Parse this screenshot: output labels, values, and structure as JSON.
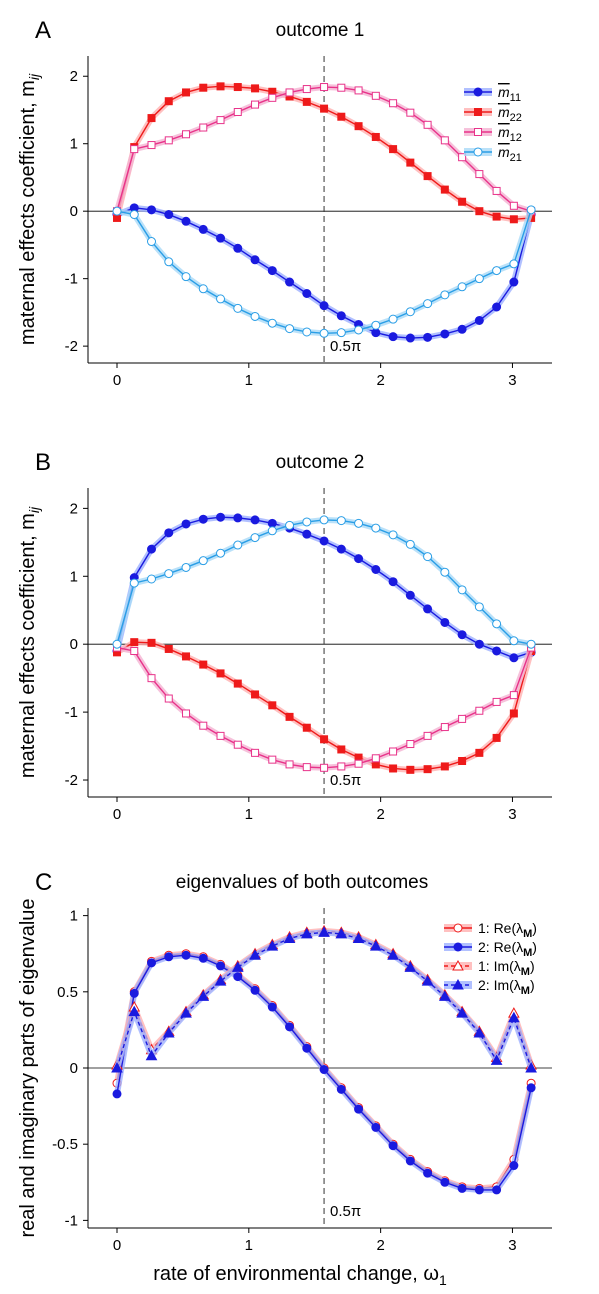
{
  "figure": {
    "xlabel_main": "rate of environmental change, ω",
    "xlabel_sub": "1",
    "vline_x": 1.5708,
    "vline_label": "0.5π",
    "colors": {
      "blue": "#1a1adf",
      "red": "#ee1a1a",
      "pink": "#e8338a",
      "cyan": "#2a9ee6",
      "blue_band": "#9db0ff",
      "red_band": "#ffb0b0",
      "pink_band": "#f4b3d2",
      "cyan_band": "#a9daf7"
    }
  },
  "chart_data": [
    {
      "type": "line",
      "panel_label": "A",
      "title": "outcome 1",
      "ylabel_main": "maternal effects coefficient, m",
      "ylabel_sub": "ij",
      "xlim": [
        -0.22,
        3.3
      ],
      "ylim": [
        -2.25,
        2.3
      ],
      "xticks": [
        "0",
        "1",
        "2",
        "3"
      ],
      "yticks": [
        "-2",
        "-1",
        "0",
        "1",
        "2"
      ],
      "x": [
        0,
        0.1309,
        0.2618,
        0.3927,
        0.5236,
        0.6545,
        0.7854,
        0.9163,
        1.0472,
        1.1781,
        1.309,
        1.4399,
        1.5708,
        1.7017,
        1.8326,
        1.9635,
        2.0944,
        2.2253,
        2.3562,
        2.4871,
        2.618,
        2.7489,
        2.8798,
        3.0107,
        3.1416
      ],
      "series": [
        {
          "name": "m̅11",
          "name_base": "m",
          "name_sub": "11",
          "color": "#1a1adf",
          "band": "#9db0ff",
          "marker": "circle",
          "filled": true,
          "dashed": false,
          "values": [
            -0.05,
            0.05,
            0.02,
            -0.05,
            -0.15,
            -0.27,
            -0.4,
            -0.55,
            -0.72,
            -0.88,
            -1.05,
            -1.22,
            -1.4,
            -1.55,
            -1.68,
            -1.8,
            -1.86,
            -1.88,
            -1.87,
            -1.82,
            -1.75,
            -1.62,
            -1.42,
            -1.05,
            -0.05
          ]
        },
        {
          "name": "m̅22",
          "name_base": "m",
          "name_sub": "22",
          "color": "#ee1a1a",
          "band": "#ffb0b0",
          "marker": "square",
          "filled": true,
          "dashed": false,
          "values": [
            -0.1,
            0.95,
            1.38,
            1.63,
            1.76,
            1.83,
            1.85,
            1.84,
            1.82,
            1.77,
            1.7,
            1.62,
            1.52,
            1.4,
            1.26,
            1.1,
            0.92,
            0.72,
            0.52,
            0.32,
            0.14,
            0.0,
            -0.08,
            -0.12,
            -0.1
          ]
        },
        {
          "name": "m̅12",
          "name_base": "m",
          "name_sub": "12",
          "color": "#e8338a",
          "band": "#f4b3d2",
          "marker": "square",
          "filled": false,
          "dashed": false,
          "values": [
            0.0,
            0.92,
            0.98,
            1.05,
            1.14,
            1.24,
            1.35,
            1.47,
            1.58,
            1.68,
            1.76,
            1.81,
            1.84,
            1.83,
            1.79,
            1.71,
            1.6,
            1.46,
            1.28,
            1.05,
            0.8,
            0.55,
            0.3,
            0.08,
            0.0
          ]
        },
        {
          "name": "m̅21",
          "name_base": "m",
          "name_sub": "21",
          "color": "#2a9ee6",
          "band": "#a9daf7",
          "marker": "circle",
          "filled": false,
          "dashed": false,
          "values": [
            0.0,
            -0.05,
            -0.45,
            -0.75,
            -0.97,
            -1.15,
            -1.3,
            -1.44,
            -1.56,
            -1.66,
            -1.74,
            -1.79,
            -1.81,
            -1.8,
            -1.76,
            -1.69,
            -1.6,
            -1.49,
            -1.37,
            -1.24,
            -1.12,
            -1.0,
            -0.88,
            -0.78,
            0.02
          ]
        }
      ]
    },
    {
      "type": "line",
      "panel_label": "B",
      "title": "outcome 2",
      "ylabel_main": "maternal effects coefficient, m",
      "ylabel_sub": "ij",
      "xlim": [
        -0.22,
        3.3
      ],
      "ylim": [
        -2.25,
        2.3
      ],
      "xticks": [
        "0",
        "1",
        "2",
        "3"
      ],
      "yticks": [
        "-2",
        "-1",
        "0",
        "1",
        "2"
      ],
      "x": [
        0,
        0.1309,
        0.2618,
        0.3927,
        0.5236,
        0.6545,
        0.7854,
        0.9163,
        1.0472,
        1.1781,
        1.309,
        1.4399,
        1.5708,
        1.7017,
        1.8326,
        1.9635,
        2.0944,
        2.2253,
        2.3562,
        2.4871,
        2.618,
        2.7489,
        2.8798,
        3.0107,
        3.1416
      ],
      "series": [
        {
          "name": "blue",
          "color": "#1a1adf",
          "band": "#9db0ff",
          "marker": "circle",
          "filled": true,
          "dashed": false,
          "values": [
            -0.1,
            0.98,
            1.4,
            1.64,
            1.77,
            1.84,
            1.87,
            1.86,
            1.83,
            1.78,
            1.71,
            1.62,
            1.52,
            1.4,
            1.26,
            1.1,
            0.92,
            0.72,
            0.52,
            0.32,
            0.14,
            0.0,
            -0.1,
            -0.2,
            -0.12
          ]
        },
        {
          "name": "red",
          "color": "#ee1a1a",
          "band": "#ffb0b0",
          "marker": "square",
          "filled": true,
          "dashed": false,
          "values": [
            -0.12,
            0.03,
            0.02,
            -0.07,
            -0.18,
            -0.3,
            -0.43,
            -0.58,
            -0.74,
            -0.9,
            -1.07,
            -1.23,
            -1.4,
            -1.55,
            -1.67,
            -1.77,
            -1.83,
            -1.85,
            -1.84,
            -1.8,
            -1.72,
            -1.6,
            -1.38,
            -1.02,
            -0.1
          ]
        },
        {
          "name": "pink",
          "color": "#e8338a",
          "band": "#f4b3d2",
          "marker": "square",
          "filled": false,
          "dashed": false,
          "values": [
            -0.05,
            -0.1,
            -0.5,
            -0.8,
            -1.02,
            -1.2,
            -1.35,
            -1.48,
            -1.6,
            -1.7,
            -1.77,
            -1.81,
            -1.82,
            -1.8,
            -1.76,
            -1.68,
            -1.58,
            -1.47,
            -1.35,
            -1.22,
            -1.1,
            -0.98,
            -0.85,
            -0.75,
            -0.05
          ]
        },
        {
          "name": "cyan",
          "color": "#2a9ee6",
          "band": "#a9daf7",
          "marker": "circle",
          "filled": false,
          "dashed": false,
          "values": [
            0.0,
            0.9,
            0.96,
            1.04,
            1.13,
            1.23,
            1.34,
            1.46,
            1.57,
            1.67,
            1.75,
            1.8,
            1.83,
            1.82,
            1.78,
            1.71,
            1.61,
            1.47,
            1.29,
            1.06,
            0.8,
            0.55,
            0.3,
            0.05,
            0.0
          ]
        }
      ]
    },
    {
      "type": "line",
      "panel_label": "C",
      "title": "eigenvalues of both outcomes",
      "ylabel_main": "real and imaginary parts of eigenvalue",
      "ylabel_sub": "",
      "xlim": [
        -0.22,
        3.3
      ],
      "ylim": [
        -1.05,
        1.05
      ],
      "xticks": [
        "0",
        "1",
        "2",
        "3"
      ],
      "yticks": [
        "-1",
        "-0.5",
        "0",
        "0.5",
        "1"
      ],
      "x": [
        0,
        0.1309,
        0.2618,
        0.3927,
        0.5236,
        0.6545,
        0.7854,
        0.9163,
        1.0472,
        1.1781,
        1.309,
        1.4399,
        1.5708,
        1.7017,
        1.8326,
        1.9635,
        2.0944,
        2.2253,
        2.3562,
        2.4871,
        2.618,
        2.7489,
        2.8798,
        3.0107,
        3.1416
      ],
      "series": [
        {
          "name": "1: Re(λM)",
          "legend_main": "1: Re(λ",
          "legend_sub": "M",
          "legend_end": ")",
          "color": "#ee1a1a",
          "band": "#ffb0b0",
          "marker": "circle",
          "filled": false,
          "dashed": false,
          "values": [
            -0.1,
            0.5,
            0.7,
            0.74,
            0.75,
            0.73,
            0.68,
            0.61,
            0.52,
            0.41,
            0.28,
            0.14,
            0.0,
            -0.13,
            -0.26,
            -0.38,
            -0.5,
            -0.6,
            -0.68,
            -0.74,
            -0.78,
            -0.79,
            -0.78,
            -0.6,
            -0.1
          ]
        },
        {
          "name": "2: Re(λM)",
          "legend_main": "2: Re(λ",
          "legend_sub": "M",
          "legend_end": ")",
          "color": "#1a1adf",
          "band": "#9db0ff",
          "marker": "circle",
          "filled": true,
          "dashed": false,
          "values": [
            -0.17,
            0.49,
            0.69,
            0.73,
            0.74,
            0.72,
            0.67,
            0.6,
            0.51,
            0.4,
            0.27,
            0.13,
            -0.01,
            -0.14,
            -0.27,
            -0.39,
            -0.51,
            -0.61,
            -0.69,
            -0.75,
            -0.79,
            -0.8,
            -0.8,
            -0.64,
            -0.13
          ]
        },
        {
          "name": "1: Im(λM)",
          "legend_main": "1: Im(λ",
          "legend_sub": "M",
          "legend_end": ")",
          "color": "#ee1a1a",
          "band": "#ffb0b0",
          "marker": "triangle",
          "filled": false,
          "dashed": true,
          "values": [
            0.02,
            0.4,
            0.12,
            0.24,
            0.37,
            0.48,
            0.58,
            0.67,
            0.75,
            0.81,
            0.86,
            0.89,
            0.9,
            0.89,
            0.86,
            0.81,
            0.75,
            0.67,
            0.58,
            0.48,
            0.37,
            0.24,
            0.07,
            0.36,
            0.02
          ]
        },
        {
          "name": "2: Im(λM)",
          "legend_main": "2: Im(λ",
          "legend_sub": "M",
          "legend_end": ")",
          "color": "#1a1adf",
          "band": "#9db0ff",
          "marker": "triangle",
          "filled": true,
          "dashed": true,
          "values": [
            0.0,
            0.37,
            0.08,
            0.23,
            0.36,
            0.47,
            0.57,
            0.66,
            0.74,
            0.8,
            0.85,
            0.88,
            0.89,
            0.88,
            0.85,
            0.8,
            0.74,
            0.66,
            0.57,
            0.47,
            0.36,
            0.23,
            0.05,
            0.33,
            0.0
          ]
        }
      ]
    }
  ]
}
